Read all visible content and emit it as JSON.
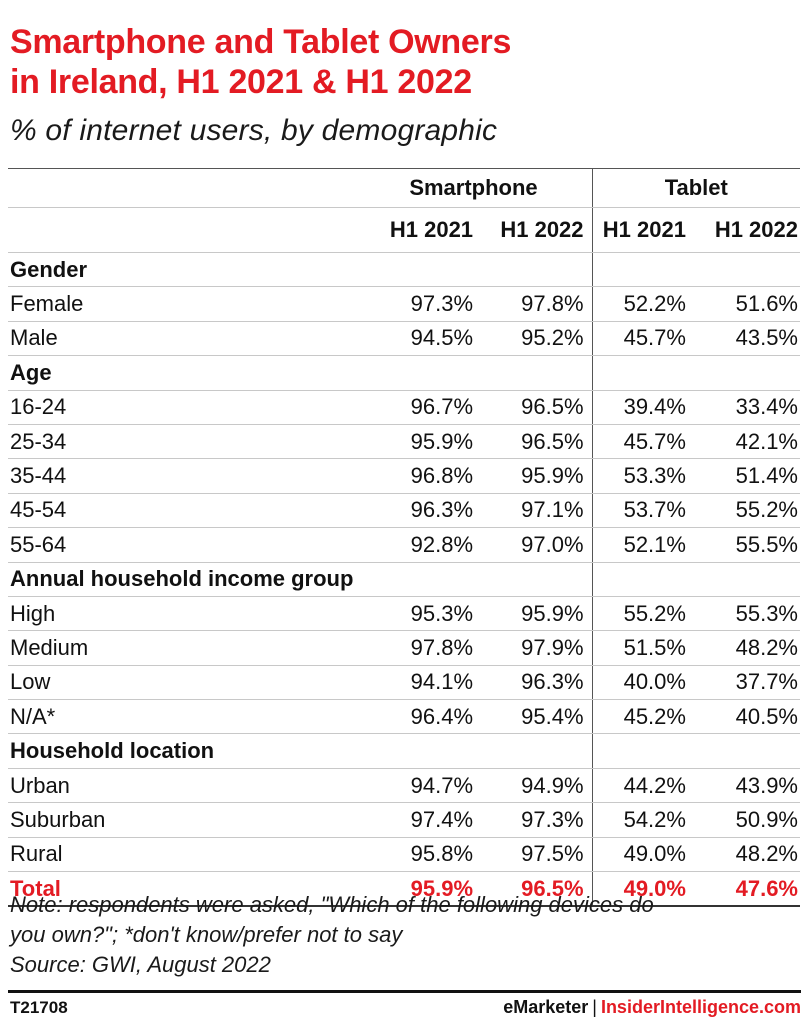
{
  "chart_data": {
    "type": "table",
    "title_line1": "Smartphone and Tablet Owners",
    "title_line2": "in Ireland, H1 2021 & H1 2022",
    "subtitle": "% of internet users, by demographic",
    "groups": [
      "Smartphone",
      "Tablet"
    ],
    "columns": [
      "H1 2021",
      "H1 2022",
      "H1 2021",
      "H1 2022"
    ],
    "rows": [
      {
        "label": "Gender",
        "section": true
      },
      {
        "label": "Female",
        "values": [
          "97.3%",
          "97.8%",
          "52.2%",
          "51.6%"
        ]
      },
      {
        "label": "Male",
        "values": [
          "94.5%",
          "95.2%",
          "45.7%",
          "43.5%"
        ]
      },
      {
        "label": "Age",
        "section": true
      },
      {
        "label": "16-24",
        "values": [
          "96.7%",
          "96.5%",
          "39.4%",
          "33.4%"
        ]
      },
      {
        "label": "25-34",
        "values": [
          "95.9%",
          "96.5%",
          "45.7%",
          "42.1%"
        ]
      },
      {
        "label": "35-44",
        "values": [
          "96.8%",
          "95.9%",
          "53.3%",
          "51.4%"
        ]
      },
      {
        "label": "45-54",
        "values": [
          "96.3%",
          "97.1%",
          "53.7%",
          "55.2%"
        ]
      },
      {
        "label": "55-64",
        "values": [
          "92.8%",
          "97.0%",
          "52.1%",
          "55.5%"
        ]
      },
      {
        "label": "Annual household income group",
        "section": true
      },
      {
        "label": "High",
        "values": [
          "95.3%",
          "95.9%",
          "55.2%",
          "55.3%"
        ]
      },
      {
        "label": "Medium",
        "values": [
          "97.8%",
          "97.9%",
          "51.5%",
          "48.2%"
        ]
      },
      {
        "label": "Low",
        "values": [
          "94.1%",
          "96.3%",
          "40.0%",
          "37.7%"
        ]
      },
      {
        "label": "N/A*",
        "values": [
          "96.4%",
          "95.4%",
          "45.2%",
          "40.5%"
        ]
      },
      {
        "label": "Household location",
        "section": true
      },
      {
        "label": "Urban",
        "values": [
          "94.7%",
          "94.9%",
          "44.2%",
          "43.9%"
        ]
      },
      {
        "label": "Suburban",
        "values": [
          "97.4%",
          "97.3%",
          "54.2%",
          "50.9%"
        ]
      },
      {
        "label": "Rural",
        "values": [
          "95.8%",
          "97.5%",
          "49.0%",
          "48.2%"
        ]
      },
      {
        "label": "Total",
        "total": true,
        "values": [
          "95.9%",
          "96.5%",
          "49.0%",
          "47.6%"
        ]
      }
    ],
    "note_line1": "Note: respondents were asked, \"Which of the following devices do",
    "note_line2": "you own?\"; *don't know/prefer not to say",
    "source": "Source: GWI, August 2022"
  },
  "footer": {
    "code": "T21708",
    "brand_left": "eMarketer",
    "brand_sep": "|",
    "brand_right": "InsiderIntelligence.com"
  },
  "colors": {
    "accent": "#e31b23",
    "text": "#111111",
    "rule": "#c8c8c8"
  }
}
